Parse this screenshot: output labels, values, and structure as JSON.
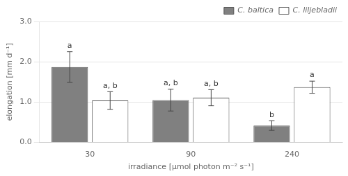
{
  "chart_data": {
    "type": "bar",
    "xlabel": "irradiance [μmol photon m⁻² s⁻¹]",
    "ylabel": "elongation [mm d⁻¹]",
    "categories": [
      "30",
      "90",
      "240"
    ],
    "series": [
      {
        "name": "C. baltica",
        "color": "#808080",
        "values": [
          1.87,
          1.05,
          0.42
        ],
        "errors": [
          0.38,
          0.27,
          0.12
        ],
        "labels": [
          "a",
          "a, b",
          "b"
        ]
      },
      {
        "name": "C. liljebladii",
        "color": "#ffffff",
        "values": [
          1.04,
          1.11,
          1.37
        ],
        "errors": [
          0.22,
          0.2,
          0.15
        ],
        "labels": [
          "a, b",
          "a, b",
          "a"
        ]
      }
    ],
    "ylim": [
      0,
      3.0
    ],
    "yticks": [
      {
        "value": 0.0,
        "label": "0.0"
      },
      {
        "value": 1.0,
        "label": "1.0"
      },
      {
        "value": 2.0,
        "label": "2.0"
      },
      {
        "value": 3.0,
        "label": "3.0"
      }
    ],
    "grid": true,
    "legend": "upper right"
  }
}
